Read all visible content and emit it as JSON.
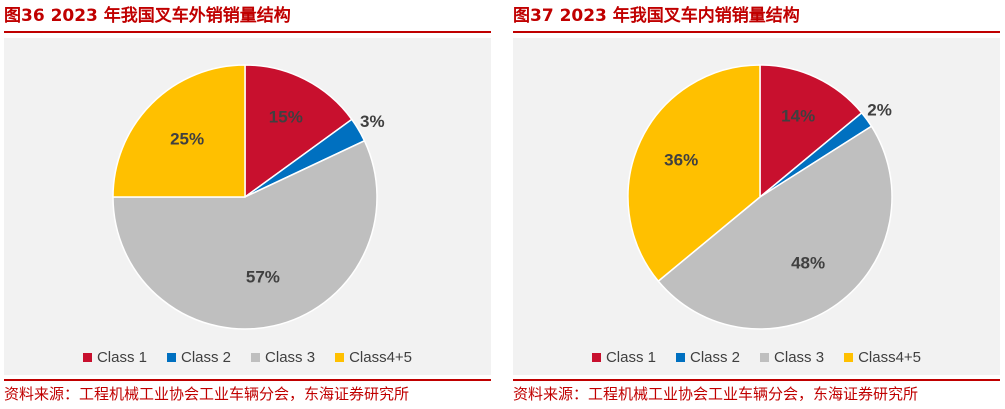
{
  "chart_data": [
    {
      "type": "pie",
      "title": "图36  2023 年我国叉车外销销量结构",
      "categories": [
        "Class 1",
        "Class 2",
        "Class 3",
        "Class4+5"
      ],
      "values": [
        15,
        3,
        57,
        25
      ],
      "labels": [
        "15%",
        "3%",
        "57%",
        "25%"
      ],
      "colors": [
        "#c8102e",
        "#0070c0",
        "#bfbfbf",
        "#ffc000"
      ],
      "legend_position": "bottom",
      "source": "资料来源：工程机械工业协会工业车辆分会，东海证券研究所"
    },
    {
      "type": "pie",
      "title": "图37  2023 年我国叉车内销销量结构",
      "categories": [
        "Class 1",
        "Class 2",
        "Class 3",
        "Class4+5"
      ],
      "values": [
        14,
        2,
        48,
        36
      ],
      "labels": [
        "14%",
        "2%",
        "48%",
        "36%"
      ],
      "colors": [
        "#c8102e",
        "#0070c0",
        "#bfbfbf",
        "#ffc000"
      ],
      "legend_position": "bottom",
      "source": "资料来源：工程机械工业协会工业车辆分会，东海证券研究所"
    }
  ]
}
